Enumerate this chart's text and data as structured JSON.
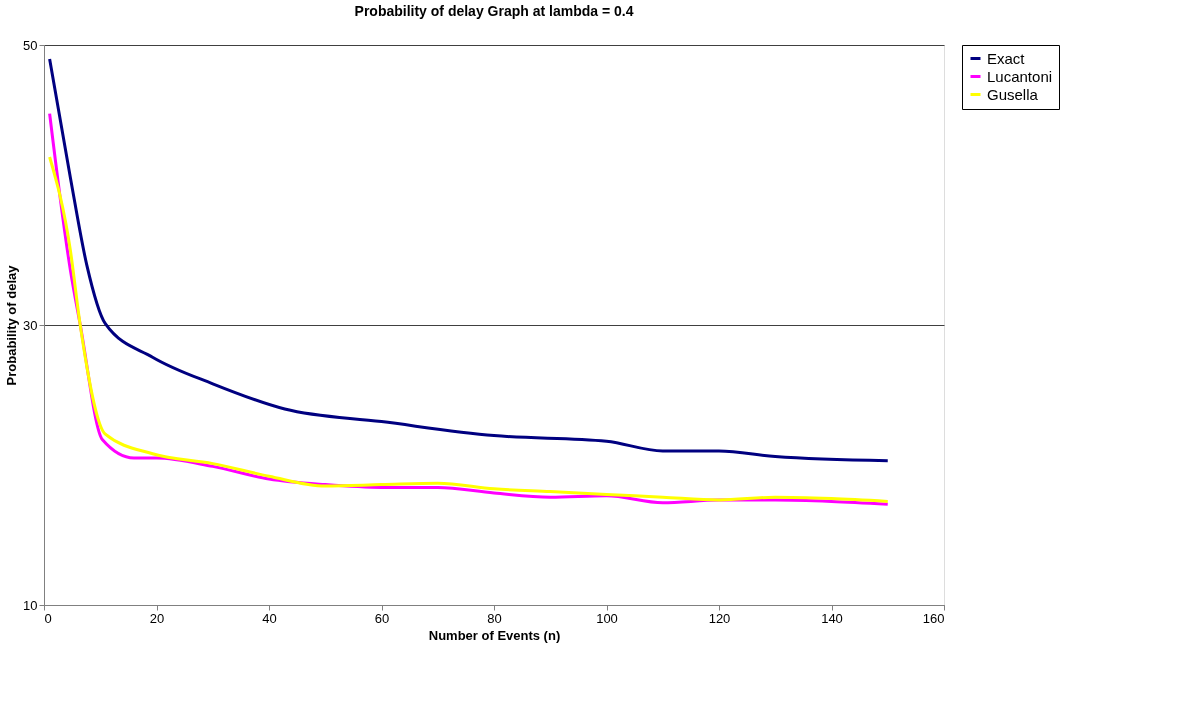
{
  "chart_data": {
    "type": "line",
    "title": "Probability of delay Graph at lambda = 0.4",
    "xlabel": "Number of Events (n)",
    "ylabel": "Probability of delay",
    "xlim": [
      0,
      160
    ],
    "xticks": [
      0,
      20,
      40,
      60,
      80,
      100,
      120,
      140,
      160
    ],
    "ylim": [
      10,
      50
    ],
    "yticks": [
      10,
      30,
      50
    ],
    "grid": "y",
    "legend": "right",
    "marker": "none",
    "line_style": "solid",
    "series": [
      {
        "name": "Exact",
        "color": "#000080",
        "x": [
          1,
          4.7,
          7.6,
          10.9,
          19.3,
          30,
          42.8,
          60,
          80,
          100,
          110,
          120,
          130,
          150
        ],
        "values": [
          49.0,
          40.5,
          34.3,
          30.1,
          27.7,
          25.8,
          24.0,
          23.1,
          22.1,
          21.7,
          21.0,
          21.0,
          20.6,
          20.3
        ]
      },
      {
        "name": "Lucantoni",
        "color": "#ff00ff",
        "x": [
          1,
          4.7,
          6.4,
          10.4,
          16,
          20,
          30,
          40,
          50,
          60,
          70,
          80,
          90,
          100,
          110,
          120,
          130,
          140,
          150
        ],
        "values": [
          45.1,
          33.9,
          30.1,
          21.8,
          20.5,
          20.5,
          19.9,
          19.0,
          18.6,
          18.4,
          18.4,
          18.0,
          17.7,
          17.8,
          17.3,
          17.5,
          17.5,
          17.4,
          17.2
        ]
      },
      {
        "name": "Gusella",
        "color": "#ffff00",
        "x": [
          1,
          4.7,
          6.4,
          10.9,
          19.3,
          30,
          40,
          50,
          60,
          70,
          80,
          90,
          100,
          110,
          120,
          130,
          140,
          150
        ],
        "values": [
          42.0,
          35.3,
          30.1,
          22.2,
          20.8,
          20.1,
          19.2,
          18.5,
          18.6,
          18.7,
          18.3,
          18.1,
          17.9,
          17.7,
          17.5,
          17.7,
          17.6,
          17.4
        ]
      }
    ]
  }
}
